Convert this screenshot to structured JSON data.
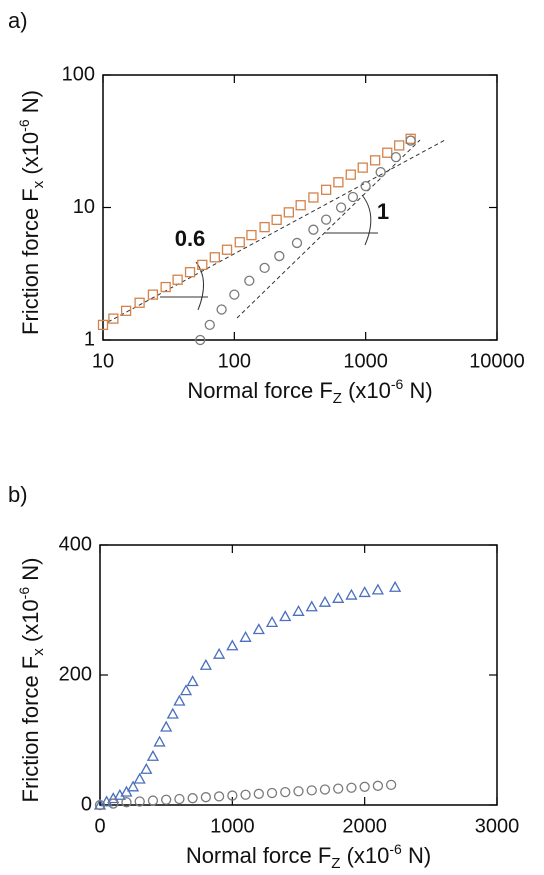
{
  "chart_data": [
    {
      "type": "scatter",
      "panel_label": "a)",
      "xscale": "log",
      "yscale": "log",
      "xlabel": [
        "Normal force F",
        "Z",
        " (x10",
        "-6",
        " N)"
      ],
      "ylabel": [
        "Friction force F",
        "x",
        " (x10",
        "-6",
        " N)"
      ],
      "xlim": [
        10,
        10000
      ],
      "xticks": [
        10,
        100,
        1000,
        10000
      ],
      "ylim": [
        1,
        100
      ],
      "yticks": [
        1,
        10,
        100
      ],
      "annotations": [
        {
          "text": "0.6",
          "color": "#d4824a"
        },
        {
          "text": "1",
          "color": "#8a8a8a"
        }
      ],
      "series": [
        {
          "color": "#d4824a",
          "marker": "square",
          "x": [
            10,
            12,
            15,
            19,
            24,
            30,
            37,
            46,
            57,
            71,
            88,
            110,
            135,
            170,
            210,
            260,
            320,
            400,
            500,
            620,
            770,
            950,
            1180,
            1460,
            1800,
            2200
          ],
          "values": [
            1.3,
            1.45,
            1.66,
            1.91,
            2.2,
            2.51,
            2.85,
            3.25,
            3.69,
            4.21,
            4.8,
            5.47,
            6.19,
            7.11,
            8.07,
            9.19,
            10.4,
            11.9,
            13.6,
            15.5,
            17.7,
            20.0,
            22.7,
            25.9,
            29.4,
            33.0
          ]
        },
        {
          "color": "#7a7a7a",
          "marker": "circle",
          "x": [
            55,
            65,
            80,
            100,
            130,
            170,
            220,
            300,
            400,
            500,
            650,
            800,
            1000,
            1300,
            1700,
            2200
          ],
          "values": [
            1.0,
            1.3,
            1.7,
            2.2,
            2.8,
            3.5,
            4.3,
            5.4,
            6.8,
            8.1,
            10,
            12,
            14.5,
            18.5,
            24,
            32
          ]
        }
      ]
    },
    {
      "type": "scatter",
      "panel_label": "b)",
      "xlabel": [
        "Normal force F",
        "Z",
        " (x10",
        "-6",
        " N)"
      ],
      "ylabel": [
        "Friction force F",
        "x",
        " (x10",
        "-6",
        " N)"
      ],
      "xlim": [
        0,
        3000
      ],
      "xticks": [
        0,
        1000,
        2000,
        3000
      ],
      "ylim": [
        0,
        400
      ],
      "yticks": [
        0,
        200,
        400
      ],
      "series": [
        {
          "color": "#4a6fbf",
          "marker": "triangle",
          "x": [
            0,
            50,
            100,
            150,
            200,
            250,
            300,
            350,
            400,
            450,
            500,
            550,
            600,
            650,
            700,
            800,
            900,
            1000,
            1100,
            1200,
            1300,
            1400,
            1500,
            1600,
            1700,
            1800,
            1900,
            2000,
            2100,
            2230
          ],
          "values": [
            0,
            5,
            10,
            15,
            20,
            28,
            40,
            55,
            75,
            97,
            120,
            140,
            160,
            176,
            190,
            215,
            232,
            245,
            258,
            270,
            281,
            290,
            298,
            305,
            312,
            318,
            323,
            327,
            331,
            335
          ]
        },
        {
          "color": "#7a7a7a",
          "marker": "circle",
          "x": [
            0,
            100,
            200,
            300,
            400,
            500,
            600,
            700,
            800,
            900,
            1000,
            1100,
            1200,
            1300,
            1400,
            1500,
            1600,
            1700,
            1800,
            1900,
            2000,
            2100,
            2200
          ],
          "values": [
            0,
            2.2,
            4.3,
            5.4,
            6.8,
            8.1,
            9.2,
            10.5,
            12,
            13.2,
            14.5,
            15.8,
            17.2,
            18.5,
            19.8,
            21.2,
            22.5,
            23.8,
            25.2,
            26.5,
            28,
            29.5,
            31
          ]
        }
      ]
    }
  ]
}
